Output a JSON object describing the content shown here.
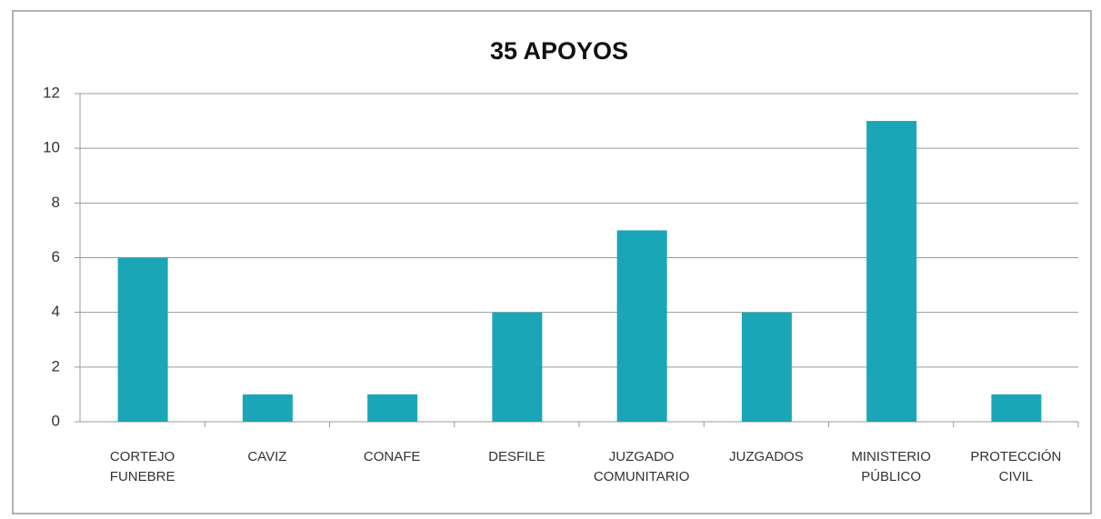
{
  "chart_data": {
    "type": "bar",
    "title": "35 APOYOS",
    "categories": [
      "CORTEJO FUNEBRE",
      "CAVIZ",
      "CONAFE",
      "DESFILE",
      "JUZGADO COMUNITARIO",
      "JUZGADOS",
      "MINISTERIO PÚBLICO",
      "PROTECCIÓN CIVIL"
    ],
    "values": [
      6,
      1,
      1,
      4,
      7,
      4,
      11,
      1
    ],
    "color": "#1aa6b7",
    "ylim": [
      0,
      12
    ],
    "yticks": [
      0,
      2,
      4,
      6,
      8,
      10,
      12
    ],
    "grid": true
  }
}
